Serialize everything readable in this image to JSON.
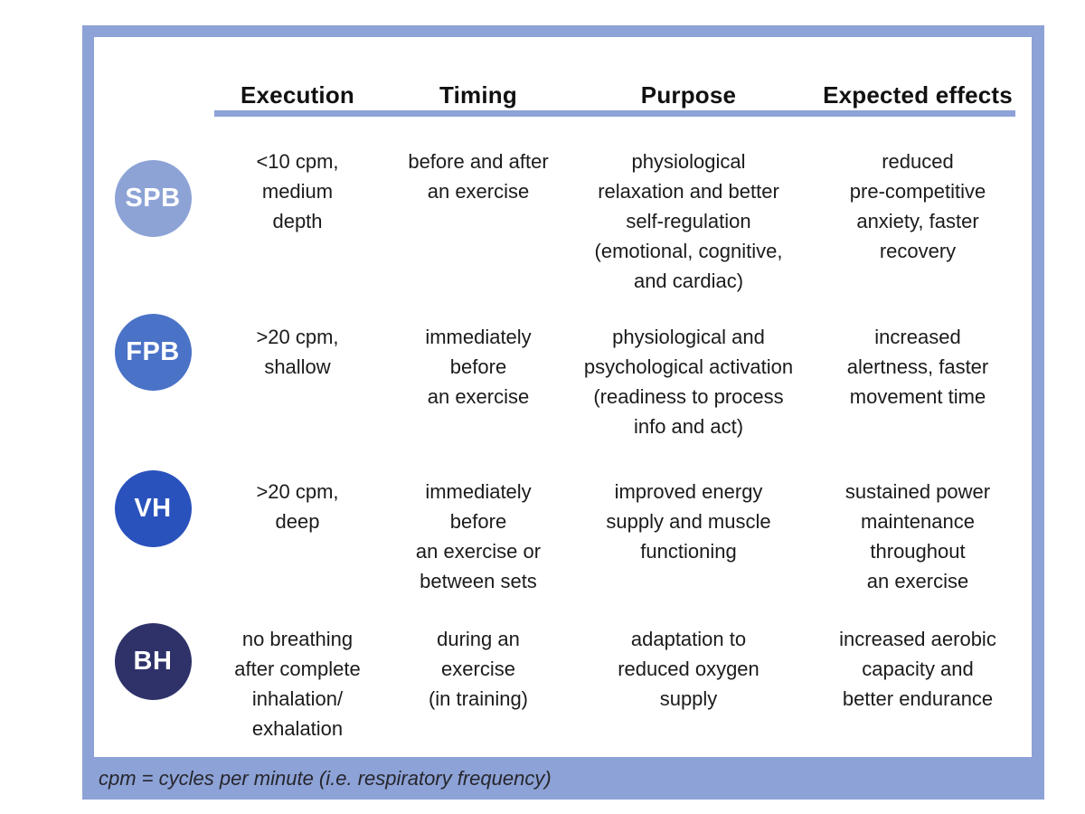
{
  "colors": {
    "accent": "#8da2d6",
    "spb_badge": "#8da3d6",
    "fpb_badge": "#4a72c7",
    "vh_badge": "#2a52bd",
    "bh_badge": "#2f3269",
    "text": "#1b1b1b"
  },
  "table": {
    "headers": [
      "Execution",
      "Timing",
      "Purpose",
      "Expected effects"
    ],
    "rows": [
      {
        "badge": "SPB",
        "badge_color": "#8da3d6",
        "execution": "<10 cpm,\nmedium\ndepth",
        "timing": "before and after\nan exercise",
        "purpose": "physiological\nrelaxation and better\nself-regulation\n(emotional, cognitive,\nand cardiac)",
        "effects": "reduced\npre-competitive\nanxiety, faster\nrecovery"
      },
      {
        "badge": "FPB",
        "badge_color": "#4a72c7",
        "execution": ">20 cpm,\nshallow",
        "timing": "immediately\nbefore\nan exercise",
        "purpose": "physiological and\npsychological activation\n(readiness to process\ninfo and act)",
        "effects": "increased\nalertness, faster\nmovement time"
      },
      {
        "badge": "VH",
        "badge_color": "#2a52bd",
        "execution": ">20 cpm,\ndeep",
        "timing": "immediately\nbefore\nan exercise or\nbetween sets",
        "purpose": "improved energy\nsupply and muscle\nfunctioning",
        "effects": "sustained power\nmaintenance\nthroughout\nan exercise"
      },
      {
        "badge": "BH",
        "badge_color": "#2f3269",
        "execution": "no breathing\nafter complete\ninhalation/\nexhalation",
        "timing": "during an\nexercise\n(in training)",
        "purpose": "adaptation to\nreduced oxygen\nsupply",
        "effects": "increased aerobic\ncapacity and\nbetter endurance"
      }
    ]
  },
  "footnote": "cpm = cycles per minute (i.e. respiratory frequency)"
}
